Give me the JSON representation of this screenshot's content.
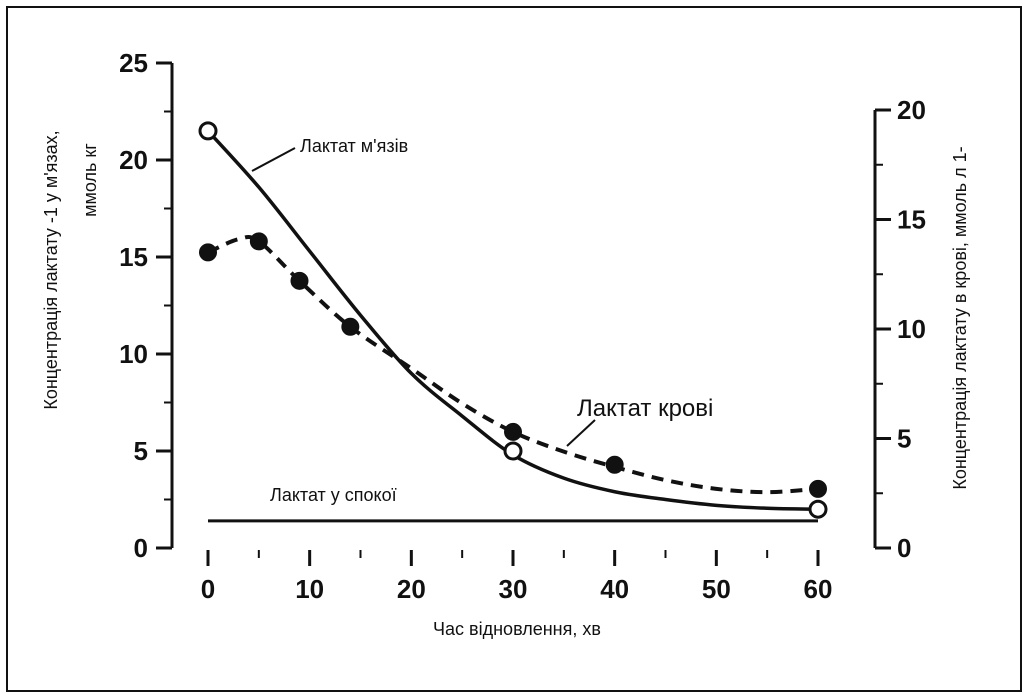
{
  "chart_data": {
    "type": "line",
    "xlabel": "Час відновлення, хв",
    "ylabel_left": "Концентрація лактату -1 у м'язах, ммоль кг",
    "ylabel_left_line1": "Концентрація лактату -1 у м'язах,",
    "ylabel_left_line2": "ммоль кг",
    "ylabel_right": "Концентрація лактату в крові, ммоль л 1-",
    "x_ticks": [
      "0",
      "10",
      "20",
      "30",
      "40",
      "50",
      "60"
    ],
    "y_left_ticks": [
      "0",
      "5",
      "10",
      "15",
      "20",
      "25"
    ],
    "y_right_ticks": [
      "0",
      "5",
      "10",
      "15",
      "20"
    ],
    "xlim": [
      0,
      60
    ],
    "ylim_left": [
      0,
      25
    ],
    "ylim_right": [
      0,
      20
    ],
    "series": [
      {
        "name": "Лактат м'язів",
        "axis": "left",
        "style": "solid",
        "marker": "open-circle",
        "x": [
          0,
          30,
          60
        ],
        "y": [
          21.5,
          5.0,
          2.0
        ],
        "curve": [
          [
            0,
            21.5
          ],
          [
            5,
            18.6
          ],
          [
            10,
            15.3
          ],
          [
            15,
            12.0
          ],
          [
            20,
            9.0
          ],
          [
            25,
            6.8
          ],
          [
            30,
            4.8
          ],
          [
            35,
            3.6
          ],
          [
            40,
            2.9
          ],
          [
            45,
            2.5
          ],
          [
            50,
            2.2
          ],
          [
            55,
            2.05
          ],
          [
            60,
            2.0
          ]
        ]
      },
      {
        "name": "Лактат крові",
        "axis": "right",
        "style": "dashed",
        "marker": "filled-circle",
        "x": [
          0,
          5,
          9,
          14,
          30,
          40,
          60
        ],
        "y": [
          13.5,
          14.0,
          12.2,
          10.1,
          5.3,
          3.8,
          2.7
        ],
        "curve": [
          [
            0,
            13.5
          ],
          [
            3,
            14.1
          ],
          [
            5,
            14.0
          ],
          [
            9,
            12.2
          ],
          [
            14,
            10.1
          ],
          [
            20,
            8.2
          ],
          [
            25,
            6.6
          ],
          [
            30,
            5.3
          ],
          [
            35,
            4.4
          ],
          [
            40,
            3.7
          ],
          [
            45,
            3.1
          ],
          [
            50,
            2.7
          ],
          [
            55,
            2.55
          ],
          [
            60,
            2.7
          ]
        ]
      },
      {
        "name": "Лактат у спокої",
        "axis": "left",
        "style": "solid",
        "marker": "none",
        "x": [
          0,
          60
        ],
        "y": [
          1.4,
          1.4
        ]
      }
    ],
    "grid": false
  }
}
